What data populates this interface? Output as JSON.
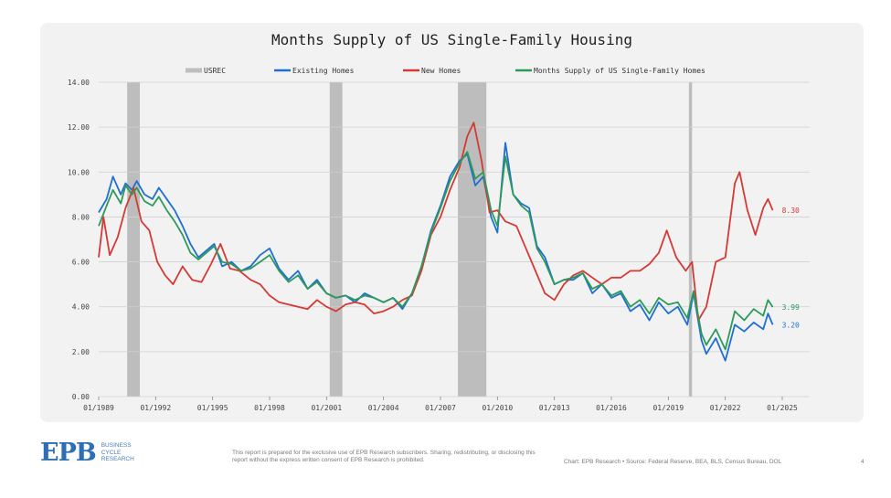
{
  "footer": {
    "logo_text": "EPB",
    "logo_sub": [
      "BUSINESS",
      "CYCLE",
      "RESEARCH"
    ],
    "disclaimer": "This report is prepared for the exclusive use of EPB Research subscribers. Sharing, redistributing, or disclosing this report without the express written consent of EPB Research is prohibited.",
    "source": "Chart: EPB Research  •  Source: Federal Reserve, BEA, BLS, Census Bureau, DOL",
    "page": "4"
  },
  "colors": {
    "existing": "#1f6fd1",
    "new": "#d43a35",
    "combined": "#2e9a5a",
    "usrec": "#bdbdbd",
    "grid": "#d0d0d0",
    "axis_text": "#444444"
  },
  "chart_data": {
    "type": "line",
    "title": "Months Supply of US Single-Family Housing",
    "xlabel": "",
    "ylabel": "",
    "xlim": [
      "1989-01",
      "2025-01"
    ],
    "ylim": [
      0,
      14
    ],
    "y_ticks": [
      "0.00",
      "2.00",
      "4.00",
      "6.00",
      "8.00",
      "10.00",
      "12.00",
      "14.00"
    ],
    "x_ticks": [
      "01/1989",
      "01/1992",
      "01/1995",
      "01/1998",
      "01/2001",
      "01/2004",
      "01/2007",
      "01/2010",
      "01/2013",
      "01/2016",
      "01/2019",
      "01/2022",
      "01/2025"
    ],
    "legend": [
      "USREC",
      "Existing Homes",
      "New Homes",
      "Months Supply of US Single-Family Homes"
    ],
    "legend_position": "top",
    "grid": "horizontal",
    "recessions": [
      {
        "start": "1990-07",
        "end": "1991-03"
      },
      {
        "start": "2001-03",
        "end": "2001-11"
      },
      {
        "start": "2007-12",
        "end": "2009-06"
      },
      {
        "start": "2020-02",
        "end": "2020-04"
      }
    ],
    "series": [
      {
        "name": "Existing Homes",
        "color_key": "existing",
        "end_label": "3.20",
        "points": [
          [
            "1989-01",
            8.2
          ],
          [
            "1989-06",
            8.8
          ],
          [
            "1989-10",
            9.8
          ],
          [
            "1990-03",
            9.0
          ],
          [
            "1990-06",
            9.5
          ],
          [
            "1990-10",
            9.2
          ],
          [
            "1991-01",
            9.6
          ],
          [
            "1991-06",
            9.0
          ],
          [
            "1991-11",
            8.8
          ],
          [
            "1992-03",
            9.3
          ],
          [
            "1992-08",
            8.8
          ],
          [
            "1993-01",
            8.3
          ],
          [
            "1993-06",
            7.6
          ],
          [
            "1993-11",
            6.8
          ],
          [
            "1994-04",
            6.2
          ],
          [
            "1994-09",
            6.5
          ],
          [
            "1995-02",
            6.8
          ],
          [
            "1995-07",
            5.8
          ],
          [
            "1996-01",
            6.0
          ],
          [
            "1996-07",
            5.6
          ],
          [
            "1997-01",
            5.8
          ],
          [
            "1997-07",
            6.3
          ],
          [
            "1998-01",
            6.6
          ],
          [
            "1998-07",
            5.7
          ],
          [
            "1999-01",
            5.2
          ],
          [
            "1999-07",
            5.6
          ],
          [
            "2000-01",
            4.8
          ],
          [
            "2000-07",
            5.2
          ],
          [
            "2001-01",
            4.6
          ],
          [
            "2001-07",
            4.4
          ],
          [
            "2002-01",
            4.5
          ],
          [
            "2002-07",
            4.2
          ],
          [
            "2003-01",
            4.6
          ],
          [
            "2003-07",
            4.4
          ],
          [
            "2004-01",
            4.2
          ],
          [
            "2004-07",
            4.4
          ],
          [
            "2005-01",
            3.9
          ],
          [
            "2005-07",
            4.6
          ],
          [
            "2006-01",
            5.8
          ],
          [
            "2006-07",
            7.4
          ],
          [
            "2007-01",
            8.5
          ],
          [
            "2007-07",
            9.8
          ],
          [
            "2008-01",
            10.5
          ],
          [
            "2008-06",
            10.8
          ],
          [
            "2008-11",
            9.4
          ],
          [
            "2009-04",
            9.8
          ],
          [
            "2009-09",
            8.0
          ],
          [
            "2010-01",
            7.3
          ],
          [
            "2010-06",
            11.3
          ],
          [
            "2010-11",
            9.0
          ],
          [
            "2011-04",
            8.6
          ],
          [
            "2011-09",
            8.4
          ],
          [
            "2012-02",
            6.7
          ],
          [
            "2012-07",
            6.2
          ],
          [
            "2013-01",
            5.0
          ],
          [
            "2013-07",
            5.2
          ],
          [
            "2014-01",
            5.2
          ],
          [
            "2014-07",
            5.5
          ],
          [
            "2015-01",
            4.6
          ],
          [
            "2015-07",
            5.0
          ],
          [
            "2016-01",
            4.4
          ],
          [
            "2016-07",
            4.6
          ],
          [
            "2017-01",
            3.8
          ],
          [
            "2017-07",
            4.1
          ],
          [
            "2018-01",
            3.4
          ],
          [
            "2018-07",
            4.2
          ],
          [
            "2019-01",
            3.7
          ],
          [
            "2019-07",
            4.0
          ],
          [
            "2020-01",
            3.2
          ],
          [
            "2020-05",
            4.6
          ],
          [
            "2020-10",
            2.5
          ],
          [
            "2021-01",
            1.9
          ],
          [
            "2021-07",
            2.6
          ],
          [
            "2022-01",
            1.6
          ],
          [
            "2022-07",
            3.2
          ],
          [
            "2023-01",
            2.9
          ],
          [
            "2023-07",
            3.3
          ],
          [
            "2024-01",
            3.0
          ],
          [
            "2024-04",
            3.7
          ],
          [
            "2024-07",
            3.2
          ]
        ]
      },
      {
        "name": "New Homes",
        "color_key": "new",
        "end_label": "8.30",
        "points": [
          [
            "1989-01",
            6.2
          ],
          [
            "1989-04",
            8.0
          ],
          [
            "1989-08",
            6.3
          ],
          [
            "1990-01",
            7.1
          ],
          [
            "1990-06",
            8.4
          ],
          [
            "1990-11",
            9.3
          ],
          [
            "1991-04",
            7.8
          ],
          [
            "1991-09",
            7.4
          ],
          [
            "1992-02",
            6.0
          ],
          [
            "1992-07",
            5.4
          ],
          [
            "1992-12",
            5.0
          ],
          [
            "1993-06",
            5.8
          ],
          [
            "1993-12",
            5.2
          ],
          [
            "1994-06",
            5.1
          ],
          [
            "1994-12",
            5.9
          ],
          [
            "1995-06",
            6.8
          ],
          [
            "1995-12",
            5.7
          ],
          [
            "1996-06",
            5.6
          ],
          [
            "1997-01",
            5.2
          ],
          [
            "1997-07",
            5.0
          ],
          [
            "1998-01",
            4.5
          ],
          [
            "1998-07",
            4.2
          ],
          [
            "1999-01",
            4.1
          ],
          [
            "1999-07",
            4.0
          ],
          [
            "2000-01",
            3.9
          ],
          [
            "2000-07",
            4.3
          ],
          [
            "2001-01",
            4.0
          ],
          [
            "2001-07",
            3.8
          ],
          [
            "2002-01",
            4.1
          ],
          [
            "2002-07",
            4.2
          ],
          [
            "2003-01",
            4.1
          ],
          [
            "2003-07",
            3.7
          ],
          [
            "2004-01",
            3.8
          ],
          [
            "2004-07",
            4.0
          ],
          [
            "2005-01",
            4.3
          ],
          [
            "2005-07",
            4.5
          ],
          [
            "2006-01",
            5.6
          ],
          [
            "2006-07",
            7.2
          ],
          [
            "2007-01",
            8.0
          ],
          [
            "2007-07",
            9.2
          ],
          [
            "2008-01",
            10.2
          ],
          [
            "2008-06",
            11.6
          ],
          [
            "2008-10",
            12.2
          ],
          [
            "2009-03",
            10.5
          ],
          [
            "2009-08",
            8.2
          ],
          [
            "2010-01",
            8.3
          ],
          [
            "2010-06",
            7.8
          ],
          [
            "2011-01",
            7.6
          ],
          [
            "2011-07",
            6.6
          ],
          [
            "2012-01",
            5.6
          ],
          [
            "2012-07",
            4.6
          ],
          [
            "2013-01",
            4.3
          ],
          [
            "2013-07",
            5.0
          ],
          [
            "2014-01",
            5.4
          ],
          [
            "2014-07",
            5.6
          ],
          [
            "2015-01",
            5.3
          ],
          [
            "2015-07",
            5.0
          ],
          [
            "2016-01",
            5.3
          ],
          [
            "2016-07",
            5.3
          ],
          [
            "2017-01",
            5.6
          ],
          [
            "2017-07",
            5.6
          ],
          [
            "2018-01",
            5.9
          ],
          [
            "2018-07",
            6.4
          ],
          [
            "2018-12",
            7.4
          ],
          [
            "2019-06",
            6.2
          ],
          [
            "2019-12",
            5.6
          ],
          [
            "2020-04",
            6.0
          ],
          [
            "2020-08",
            3.4
          ],
          [
            "2021-01",
            4.0
          ],
          [
            "2021-07",
            6.0
          ],
          [
            "2022-01",
            6.2
          ],
          [
            "2022-07",
            9.5
          ],
          [
            "2022-10",
            10.0
          ],
          [
            "2023-03",
            8.3
          ],
          [
            "2023-08",
            7.2
          ],
          [
            "2024-01",
            8.4
          ],
          [
            "2024-04",
            8.8
          ],
          [
            "2024-07",
            8.3
          ]
        ]
      },
      {
        "name": "Months Supply of US Single-Family Homes",
        "color_key": "combined",
        "end_label": "3.99",
        "points": [
          [
            "1989-01",
            7.6
          ],
          [
            "1989-06",
            8.5
          ],
          [
            "1989-10",
            9.2
          ],
          [
            "1990-03",
            8.6
          ],
          [
            "1990-06",
            9.4
          ],
          [
            "1990-10",
            9.0
          ],
          [
            "1991-01",
            9.3
          ],
          [
            "1991-06",
            8.7
          ],
          [
            "1991-11",
            8.5
          ],
          [
            "1992-03",
            8.9
          ],
          [
            "1992-08",
            8.3
          ],
          [
            "1993-01",
            7.8
          ],
          [
            "1993-06",
            7.2
          ],
          [
            "1993-11",
            6.4
          ],
          [
            "1994-04",
            6.1
          ],
          [
            "1994-09",
            6.4
          ],
          [
            "1995-02",
            6.7
          ],
          [
            "1995-07",
            6.0
          ],
          [
            "1996-01",
            5.9
          ],
          [
            "1996-07",
            5.6
          ],
          [
            "1997-01",
            5.7
          ],
          [
            "1997-07",
            6.0
          ],
          [
            "1998-01",
            6.3
          ],
          [
            "1998-07",
            5.6
          ],
          [
            "1999-01",
            5.1
          ],
          [
            "1999-07",
            5.4
          ],
          [
            "2000-01",
            4.8
          ],
          [
            "2000-07",
            5.1
          ],
          [
            "2001-01",
            4.6
          ],
          [
            "2001-07",
            4.4
          ],
          [
            "2002-01",
            4.5
          ],
          [
            "2002-07",
            4.3
          ],
          [
            "2003-01",
            4.5
          ],
          [
            "2003-07",
            4.4
          ],
          [
            "2004-01",
            4.2
          ],
          [
            "2004-07",
            4.4
          ],
          [
            "2005-01",
            4.0
          ],
          [
            "2005-07",
            4.6
          ],
          [
            "2006-01",
            5.8
          ],
          [
            "2006-07",
            7.3
          ],
          [
            "2007-01",
            8.4
          ],
          [
            "2007-07",
            9.6
          ],
          [
            "2008-01",
            10.4
          ],
          [
            "2008-06",
            10.9
          ],
          [
            "2008-11",
            9.7
          ],
          [
            "2009-04",
            10.0
          ],
          [
            "2009-09",
            8.3
          ],
          [
            "2010-01",
            7.6
          ],
          [
            "2010-06",
            10.7
          ],
          [
            "2010-11",
            9.0
          ],
          [
            "2011-04",
            8.5
          ],
          [
            "2011-09",
            8.2
          ],
          [
            "2012-02",
            6.6
          ],
          [
            "2012-07",
            6.0
          ],
          [
            "2013-01",
            5.0
          ],
          [
            "2013-07",
            5.2
          ],
          [
            "2014-01",
            5.3
          ],
          [
            "2014-07",
            5.5
          ],
          [
            "2015-01",
            4.8
          ],
          [
            "2015-07",
            5.0
          ],
          [
            "2016-01",
            4.5
          ],
          [
            "2016-07",
            4.7
          ],
          [
            "2017-01",
            4.0
          ],
          [
            "2017-07",
            4.3
          ],
          [
            "2018-01",
            3.7
          ],
          [
            "2018-07",
            4.4
          ],
          [
            "2019-01",
            4.1
          ],
          [
            "2019-07",
            4.2
          ],
          [
            "2020-01",
            3.5
          ],
          [
            "2020-05",
            4.7
          ],
          [
            "2020-10",
            2.8
          ],
          [
            "2021-01",
            2.3
          ],
          [
            "2021-07",
            3.0
          ],
          [
            "2022-01",
            2.1
          ],
          [
            "2022-07",
            3.8
          ],
          [
            "2023-01",
            3.4
          ],
          [
            "2023-07",
            3.9
          ],
          [
            "2024-01",
            3.6
          ],
          [
            "2024-04",
            4.3
          ],
          [
            "2024-07",
            3.99
          ]
        ]
      }
    ]
  }
}
